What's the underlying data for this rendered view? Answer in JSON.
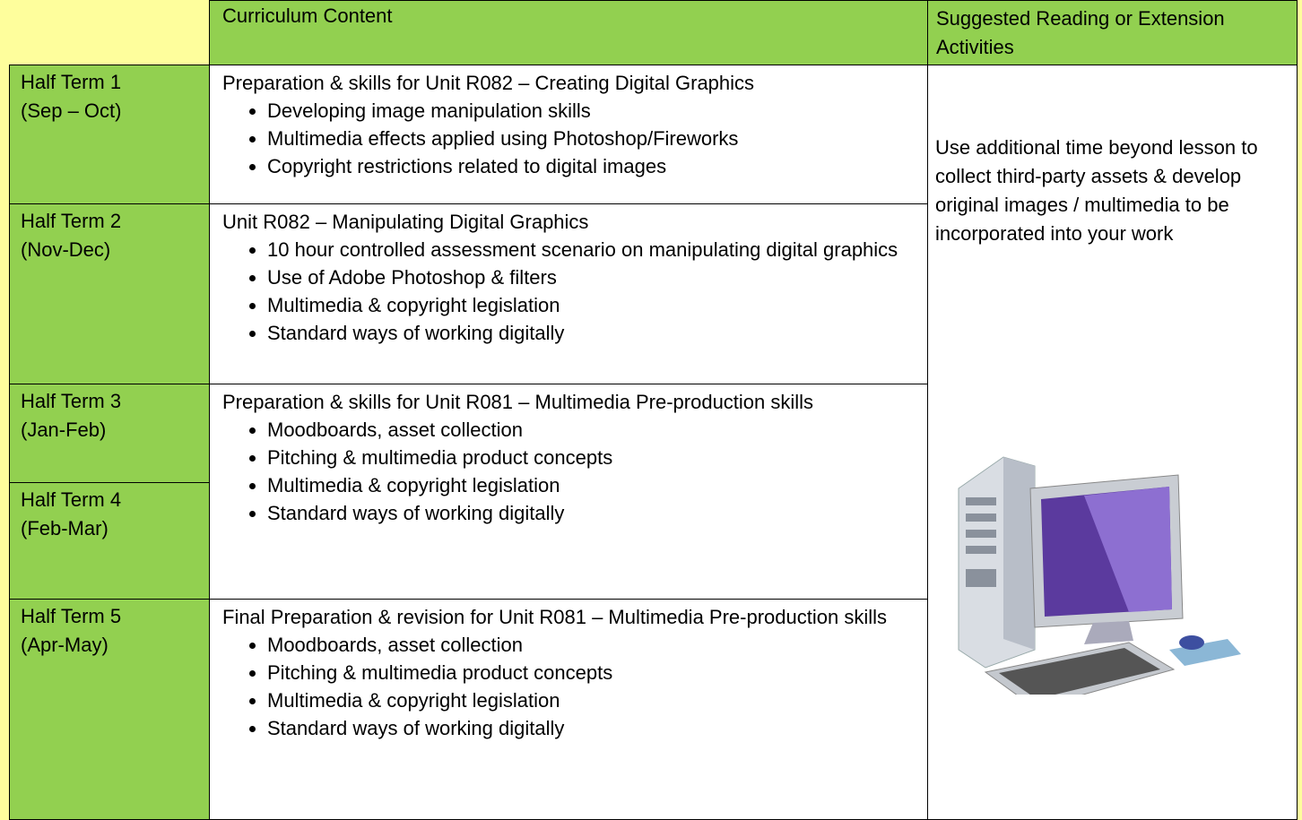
{
  "header": {
    "columns": [
      "Curriculum Content",
      "Suggested Reading or Extension Activities"
    ]
  },
  "terms": [
    {
      "name": "Half Term 1",
      "months": "(Sep – Oct)"
    },
    {
      "name": "Half Term 2",
      "months": "(Nov-Dec)"
    },
    {
      "name": "Half Term 3",
      "months": "(Jan-Feb)"
    },
    {
      "name": "Half Term 4",
      "months": "(Feb-Mar)"
    },
    {
      "name": "Half Term 5",
      "months": "(Apr-May)"
    }
  ],
  "content": [
    {
      "title": "Preparation & skills for Unit R082 – Creating Digital Graphics",
      "bullets": [
        "Developing image manipulation skills",
        "Multimedia effects applied using Photoshop/Fireworks",
        "Copyright restrictions related to digital images"
      ]
    },
    {
      "title": "Unit R082 – Manipulating Digital Graphics",
      "bullets": [
        "10 hour controlled assessment scenario on manipulating digital graphics",
        "Use of Adobe Photoshop & filters",
        "Multimedia & copyright legislation",
        "Standard ways of working digitally"
      ]
    },
    {
      "title": "Preparation & skills for Unit R081 – Multimedia Pre-production skills",
      "bullets": [
        "Moodboards, asset collection",
        "Pitching & multimedia product concepts",
        "Multimedia & copyright legislation",
        "Standard ways of working digitally"
      ]
    },
    {
      "title": "Final Preparation & revision for Unit R081 – Multimedia Pre-production skills",
      "bullets": [
        "Moodboards, asset collection",
        "Pitching & multimedia product concepts",
        "Multimedia & copyright legislation",
        "Standard ways of working digitally"
      ]
    }
  ],
  "side_note": "Use additional time beyond lesson to collect third-party assets & develop original images / multimedia to be incorporated into your work"
}
